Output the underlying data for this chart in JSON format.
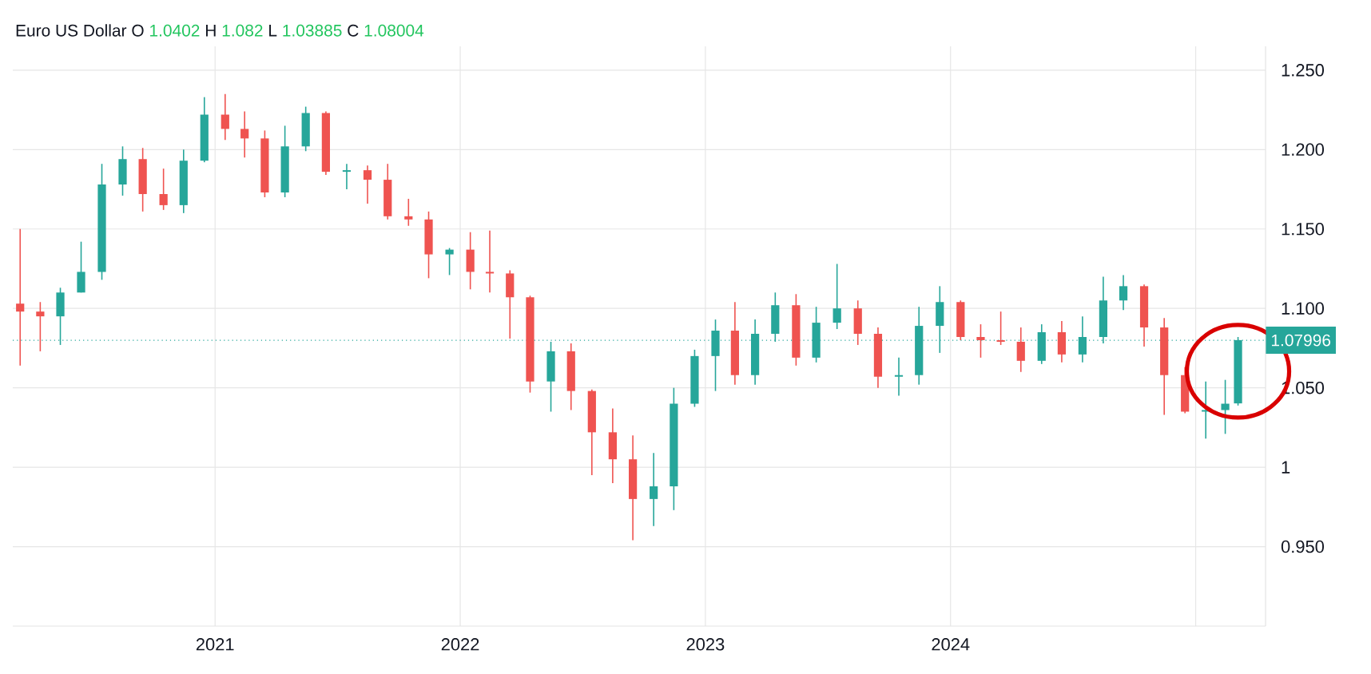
{
  "chart_data": {
    "type": "candlestick",
    "title": "Euro US Dollar",
    "annotations": [
      "O",
      "1.0402",
      "H",
      "1.082",
      "L",
      "1.03885",
      "C",
      "1.08004"
    ],
    "x": [
      "2020-03-16",
      "2020-04-15",
      "2020-05-15",
      "2020-06-15",
      "2020-07-16",
      "2020-08-16",
      "2020-09-15",
      "2020-10-16",
      "2020-11-15",
      "2020-12-16",
      "2021-01-16",
      "2021-02-14",
      "2021-03-16",
      "2021-04-15",
      "2021-05-16",
      "2021-06-15",
      "2021-07-16",
      "2021-08-16",
      "2021-09-15",
      "2021-10-16",
      "2021-11-15",
      "2021-12-16",
      "2022-01-16",
      "2022-02-14",
      "2022-03-16",
      "2022-04-15",
      "2022-05-16",
      "2022-06-15",
      "2022-07-16",
      "2022-08-16",
      "2022-09-15",
      "2022-10-16",
      "2022-11-15",
      "2022-12-16",
      "2023-01-16",
      "2023-02-14",
      "2023-03-16",
      "2023-04-15",
      "2023-05-16",
      "2023-06-15",
      "2023-07-16",
      "2023-08-16",
      "2023-09-15",
      "2023-10-16",
      "2023-11-15",
      "2023-12-16",
      "2024-01-16",
      "2024-02-15",
      "2024-03-16",
      "2024-04-15",
      "2024-05-16",
      "2024-06-15",
      "2024-07-16",
      "2024-08-16",
      "2024-09-15",
      "2024-10-16",
      "2024-11-15",
      "2024-12-16",
      "2025-01-16",
      "2025-02-14",
      "2025-03-05"
    ],
    "ohlc": [
      [
        1.103,
        1.15,
        1.064,
        1.098
      ],
      [
        1.098,
        1.104,
        1.073,
        1.095
      ],
      [
        1.095,
        1.113,
        1.077,
        1.11
      ],
      [
        1.11,
        1.142,
        1.11,
        1.123
      ],
      [
        1.123,
        1.191,
        1.118,
        1.178
      ],
      [
        1.178,
        1.202,
        1.171,
        1.194
      ],
      [
        1.194,
        1.201,
        1.161,
        1.172
      ],
      [
        1.172,
        1.188,
        1.162,
        1.165
      ],
      [
        1.165,
        1.2,
        1.16,
        1.193
      ],
      [
        1.193,
        1.233,
        1.192,
        1.222
      ],
      [
        1.222,
        1.235,
        1.206,
        1.213
      ],
      [
        1.213,
        1.224,
        1.195,
        1.207
      ],
      [
        1.207,
        1.212,
        1.17,
        1.173
      ],
      [
        1.173,
        1.215,
        1.17,
        1.202
      ],
      [
        1.202,
        1.227,
        1.199,
        1.223
      ],
      [
        1.223,
        1.224,
        1.184,
        1.186
      ],
      [
        1.186,
        1.191,
        1.175,
        1.187
      ],
      [
        1.187,
        1.19,
        1.166,
        1.181
      ],
      [
        1.181,
        1.191,
        1.156,
        1.158
      ],
      [
        1.158,
        1.169,
        1.152,
        1.156
      ],
      [
        1.156,
        1.161,
        1.119,
        1.134
      ],
      [
        1.134,
        1.138,
        1.121,
        1.137
      ],
      [
        1.137,
        1.148,
        1.112,
        1.123
      ],
      [
        1.123,
        1.149,
        1.11,
        1.122
      ],
      [
        1.122,
        1.124,
        1.081,
        1.107
      ],
      [
        1.107,
        1.108,
        1.047,
        1.054
      ],
      [
        1.054,
        1.079,
        1.035,
        1.073
      ],
      [
        1.073,
        1.078,
        1.036,
        1.048
      ],
      [
        1.048,
        1.049,
        0.995,
        1.022
      ],
      [
        1.022,
        1.037,
        0.99,
        1.005
      ],
      [
        1.005,
        1.02,
        0.954,
        0.98
      ],
      [
        0.98,
        1.009,
        0.963,
        0.988
      ],
      [
        0.988,
        1.05,
        0.973,
        1.04
      ],
      [
        1.04,
        1.074,
        1.038,
        1.07
      ],
      [
        1.07,
        1.093,
        1.048,
        1.086
      ],
      [
        1.086,
        1.104,
        1.052,
        1.058
      ],
      [
        1.058,
        1.093,
        1.052,
        1.084
      ],
      [
        1.084,
        1.11,
        1.079,
        1.102
      ],
      [
        1.102,
        1.109,
        1.064,
        1.069
      ],
      [
        1.069,
        1.101,
        1.066,
        1.091
      ],
      [
        1.091,
        1.128,
        1.087,
        1.1
      ],
      [
        1.1,
        1.105,
        1.077,
        1.084
      ],
      [
        1.084,
        1.088,
        1.05,
        1.057
      ],
      [
        1.057,
        1.069,
        1.045,
        1.058
      ],
      [
        1.058,
        1.101,
        1.052,
        1.089
      ],
      [
        1.089,
        1.114,
        1.072,
        1.104
      ],
      [
        1.104,
        1.105,
        1.08,
        1.082
      ],
      [
        1.082,
        1.09,
        1.069,
        1.08
      ],
      [
        1.08,
        1.098,
        1.077,
        1.079
      ],
      [
        1.079,
        1.088,
        1.06,
        1.067
      ],
      [
        1.067,
        1.09,
        1.065,
        1.085
      ],
      [
        1.085,
        1.092,
        1.066,
        1.071
      ],
      [
        1.071,
        1.095,
        1.066,
        1.082
      ],
      [
        1.082,
        1.12,
        1.078,
        1.105
      ],
      [
        1.105,
        1.121,
        1.099,
        1.114
      ],
      [
        1.114,
        1.115,
        1.076,
        1.088
      ],
      [
        1.088,
        1.094,
        1.033,
        1.058
      ],
      [
        1.058,
        1.063,
        1.034,
        1.035
      ],
      [
        1.035,
        1.054,
        1.018,
        1.036
      ],
      [
        1.036,
        1.055,
        1.021,
        1.04
      ],
      [
        1.0402,
        1.082,
        1.03885,
        1.08004
      ]
    ],
    "colors": [
      "#ef5350",
      "#ef5350",
      "#26a69a",
      "#26a69a",
      "#26a69a",
      "#26a69a",
      "#ef5350",
      "#ef5350",
      "#26a69a",
      "#26a69a",
      "#ef5350",
      "#ef5350",
      "#ef5350",
      "#26a69a",
      "#26a69a",
      "#ef5350",
      "#26a69a",
      "#ef5350",
      "#ef5350",
      "#ef5350",
      "#ef5350",
      "#26a69a",
      "#ef5350",
      "#ef5350",
      "#ef5350",
      "#ef5350",
      "#26a69a",
      "#ef5350",
      "#ef5350",
      "#ef5350",
      "#ef5350",
      "#26a69a",
      "#26a69a",
      "#26a69a",
      "#26a69a",
      "#ef5350",
      "#26a69a",
      "#26a69a",
      "#ef5350",
      "#26a69a",
      "#26a69a",
      "#ef5350",
      "#ef5350",
      "#26a69a",
      "#26a69a",
      "#26a69a",
      "#ef5350",
      "#ef5350",
      "#ef5350",
      "#ef5350",
      "#26a69a",
      "#ef5350",
      "#26a69a",
      "#26a69a",
      "#26a69a",
      "#ef5350",
      "#ef5350",
      "#ef5350",
      "#26a69a",
      "#26a69a",
      "#26a69a"
    ],
    "xlim": [
      "2020-03-05",
      "2025-04-15"
    ],
    "xticks": [
      "2021",
      "2022",
      "2023",
      "2024",
      {
        "value": "2025",
        "label": null
      }
    ],
    "ylim": [
      0.9,
      1.265
    ],
    "yticks": [
      {
        "value": 0.95,
        "label": "0.950"
      },
      1,
      {
        "value": 1.05,
        "label": "1.050"
      },
      {
        "value": 1.1,
        "label": "1.100"
      },
      {
        "value": 1.15,
        "label": "1.150"
      },
      {
        "value": 1.2,
        "label": "1.200"
      },
      {
        "value": 1.25,
        "label": "1.250"
      }
    ],
    "grid": true,
    "ref_lines": [
      {
        "axis": "y",
        "value": 1.07996,
        "label": "1.07996",
        "color": "#26a69a",
        "line_style": "dotted"
      }
    ]
  }
}
